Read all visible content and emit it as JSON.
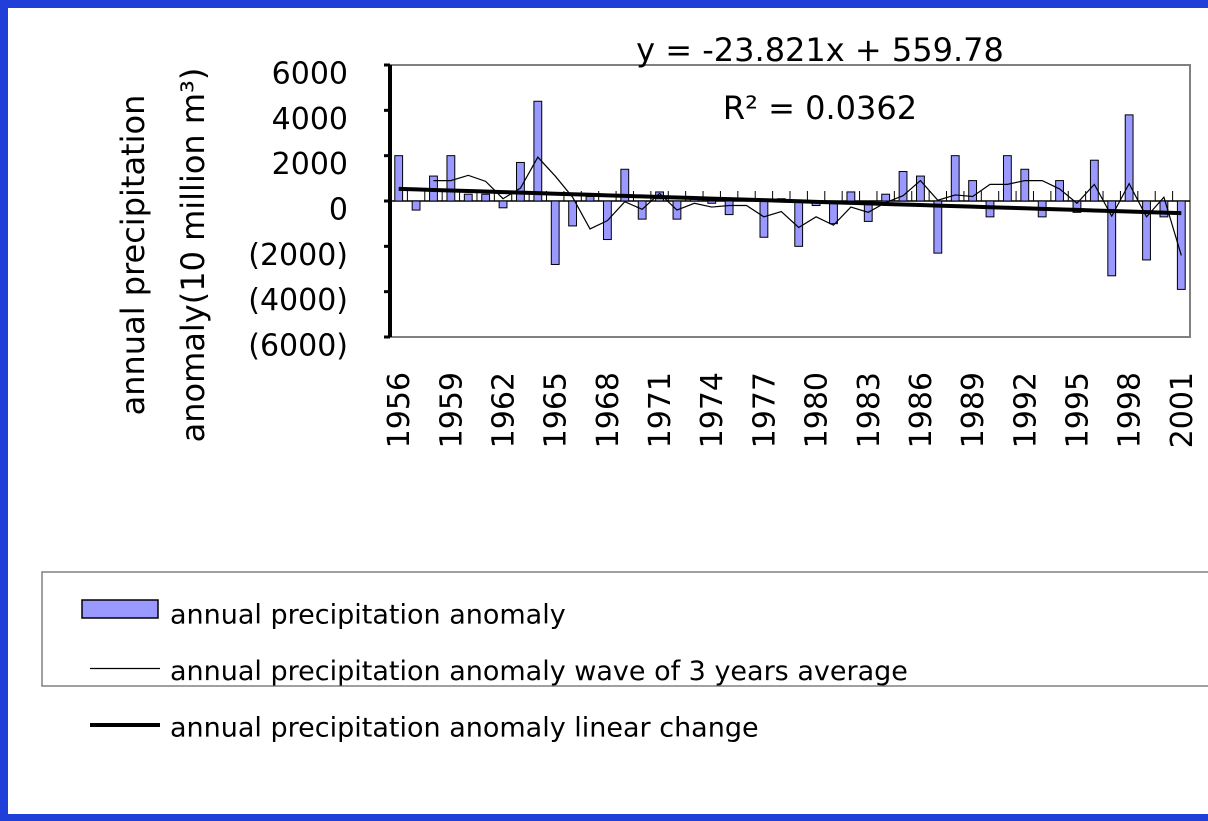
{
  "chart_data": {
    "type": "bar",
    "annotations": [
      "y = -23.821x + 559.78",
      "R² = 0.0362"
    ],
    "y_label": [
      "annual precipitation",
      "anomaly(10 million m³)"
    ],
    "categories": [
      "1956",
      null,
      null,
      "1959",
      null,
      null,
      "1962",
      null,
      null,
      "1965",
      null,
      null,
      "1968",
      null,
      null,
      "1971",
      null,
      null,
      "1974",
      null,
      null,
      "1977",
      null,
      null,
      "1980",
      null,
      null,
      "1983",
      null,
      null,
      "1986",
      null,
      null,
      "1989",
      null,
      null,
      "1992",
      null,
      null,
      "1995",
      null,
      null,
      "1998",
      null,
      null,
      "2001"
    ],
    "series": [
      {
        "name": "annual precipitation anomaly",
        "type": "bar",
        "color": "#9999ff",
        "values": [
          2000,
          -400,
          1100,
          2000,
          300,
          300,
          -300,
          1700,
          4400,
          -2800,
          -1100,
          200,
          -1700,
          1400,
          -800,
          400,
          -800,
          100,
          -100,
          -600,
          100,
          -1600,
          100,
          -2000,
          -200,
          -1000,
          400,
          -900,
          300,
          1300,
          1100,
          -2300,
          2000,
          900,
          -700,
          2000,
          1400,
          -700,
          900,
          -500,
          1800,
          -3300,
          3800,
          -2600,
          -700,
          -3900
        ]
      },
      {
        "name": "annual precipitation anomaly wave of 3 years average",
        "type": "line",
        "color": "#000000",
        "width": 1.2,
        "values": [
          null,
          null,
          900,
          900,
          1133,
          867,
          100,
          567,
          1933,
          1100,
          167,
          -1233,
          -867,
          -33,
          -367,
          333,
          -400,
          -100,
          -267,
          -200,
          -200,
          -700,
          -467,
          -1167,
          -700,
          -1067,
          -267,
          -500,
          -67,
          233,
          900,
          33,
          267,
          200,
          733,
          733,
          900,
          900,
          533,
          -100,
          733,
          -667,
          767,
          -700,
          167,
          -2400
        ]
      },
      {
        "name": "annual precipitation anomaly linear change",
        "type": "line",
        "color": "#000000",
        "width": 4,
        "values": [
          536,
          512,
          488,
          465,
          441,
          417,
          393,
          369,
          345,
          322,
          298,
          274,
          250,
          226,
          202,
          179,
          155,
          131,
          107,
          83,
          59,
          36,
          12,
          -12,
          -36,
          -59,
          -83,
          -107,
          -131,
          -155,
          -179,
          -203,
          -226,
          -250,
          -274,
          -298,
          -322,
          -346,
          -369,
          -393,
          -417,
          -441,
          -465,
          -489,
          -512,
          -536
        ]
      }
    ],
    "ylim": [
      -6000,
      6000
    ],
    "yticks": [
      {
        "value": -6000,
        "label": "(6000)"
      },
      {
        "value": -4000,
        "label": "(4000)"
      },
      {
        "value": -2000,
        "label": "(2000)"
      },
      0,
      2000,
      4000,
      6000
    ],
    "negative_tick_color": "#ff0000",
    "legend": "bottom"
  }
}
